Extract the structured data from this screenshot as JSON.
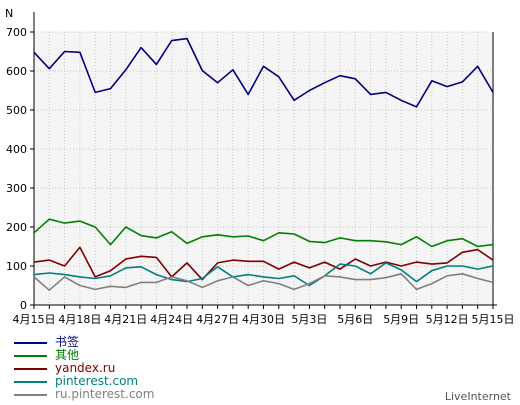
{
  "chart_data": {
    "type": "line",
    "ylabel": "N",
    "ylim": [
      0,
      700
    ],
    "yticks": [
      0,
      100,
      200,
      300,
      400,
      500,
      600,
      700
    ],
    "x": [
      "4月15日",
      "4月16日",
      "4月17日",
      "4月18日",
      "4月19日",
      "4月20日",
      "4月21日",
      "4月22日",
      "4月23日",
      "4月24日",
      "4月25日",
      "4月26日",
      "4月27日",
      "4月28日",
      "4月29日",
      "4月30日",
      "5月1日",
      "5月2日",
      "5月3日",
      "5月4日",
      "5月5日",
      "5月6日",
      "5月7日",
      "5月8日",
      "5月9日",
      "5月10日",
      "5月11日",
      "5月12日",
      "5月13日",
      "5月14日",
      "5月15日"
    ],
    "xtick_labels": [
      "4月15日",
      "4月18日",
      "4月21日",
      "4月24日",
      "4月27日",
      "4月30日",
      "5月3日",
      "5月6日",
      "5月9日",
      "5月12日",
      "5月15日"
    ],
    "grid": true,
    "plot_background": "#f5f5f5",
    "series": [
      {
        "name": "书签",
        "color": "#000080",
        "values": [
          648,
          606,
          650,
          648,
          545,
          555,
          603,
          660,
          617,
          678,
          683,
          601,
          570,
          603,
          540,
          612,
          585,
          525,
          550,
          570,
          588,
          580,
          540,
          545,
          525,
          508,
          575,
          560,
          572,
          612,
          545
        ]
      },
      {
        "name": "其他",
        "color": "#008000",
        "values": [
          185,
          220,
          210,
          215,
          200,
          155,
          200,
          178,
          172,
          188,
          158,
          175,
          180,
          175,
          177,
          165,
          185,
          182,
          163,
          160,
          172,
          165,
          165,
          162,
          155,
          175,
          150,
          165,
          170,
          150,
          155
        ]
      },
      {
        "name": "yandex.ru",
        "color": "#800000",
        "values": [
          110,
          115,
          100,
          148,
          72,
          88,
          118,
          125,
          122,
          72,
          108,
          65,
          108,
          115,
          112,
          112,
          92,
          110,
          95,
          110,
          92,
          118,
          100,
          110,
          100,
          110,
          105,
          108,
          135,
          142,
          115
        ]
      },
      {
        "name": "pinterest.com",
        "color": "#008080",
        "values": [
          78,
          82,
          78,
          72,
          68,
          75,
          95,
          98,
          78,
          65,
          60,
          68,
          98,
          72,
          78,
          72,
          68,
          75,
          50,
          75,
          105,
          100,
          80,
          108,
          90,
          60,
          88,
          100,
          100,
          92,
          100
        ]
      },
      {
        "name": "ru.pinterest.com",
        "color": "#808080",
        "values": [
          72,
          38,
          72,
          50,
          40,
          48,
          45,
          58,
          58,
          72,
          62,
          45,
          62,
          72,
          50,
          62,
          55,
          40,
          55,
          75,
          72,
          65,
          65,
          70,
          80,
          40,
          55,
          75,
          80,
          68,
          58
        ]
      }
    ]
  },
  "watermark": "LiveInternet"
}
